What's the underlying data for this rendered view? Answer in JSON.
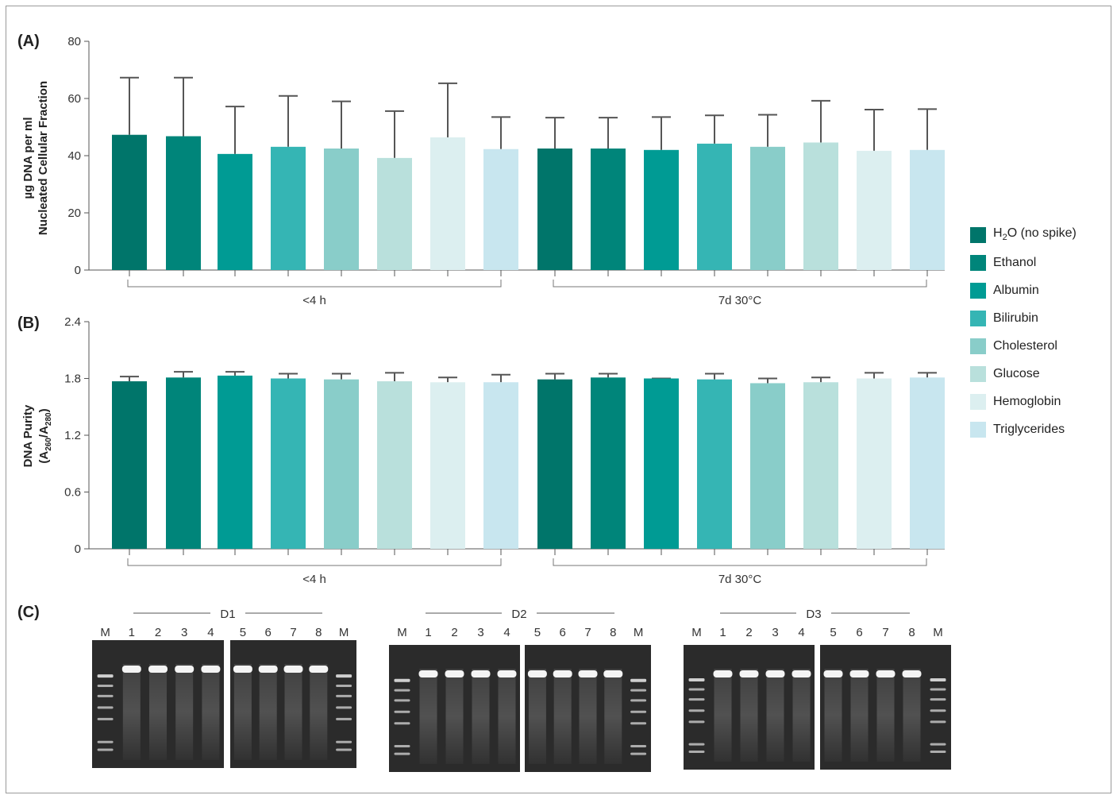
{
  "panels": {
    "a": "(A)",
    "b": "(B)",
    "c": "(C)"
  },
  "legend": [
    {
      "label": "H₂O (no spike)",
      "color": "#00756a"
    },
    {
      "label": "Ethanol",
      "color": "#00857a"
    },
    {
      "label": "Albumin",
      "color": "#009b94"
    },
    {
      "label": "Bilirubin",
      "color": "#35b5b4"
    },
    {
      "label": "Cholesterol",
      "color": "#89cdc9"
    },
    {
      "label": "Glucose",
      "color": "#b9e0dc"
    },
    {
      "label": "Hemoglobin",
      "color": "#dceff0"
    },
    {
      "label": "Triglycerides",
      "color": "#c8e6ef"
    }
  ],
  "chart_data": [
    {
      "type": "bar",
      "panel": "(A)",
      "ylabel_lines": [
        "µg DNA per ml",
        "Nucleated Cellular Fraction"
      ],
      "ylim": [
        0,
        80
      ],
      "yticks": [
        "0",
        "20",
        "40",
        "60",
        "80"
      ],
      "groups": [
        "<4 h",
        "7d 30°C"
      ],
      "categories": [
        "H₂O (no spike)",
        "Ethanol",
        "Albumin",
        "Bilirubin",
        "Cholesterol",
        "Glucose",
        "Hemoglobin",
        "Triglycerides"
      ],
      "series": [
        {
          "name": "<4 h",
          "values": [
            47.3,
            46.8,
            40.6,
            43.1,
            42.5,
            39.2,
            46.4,
            42.3
          ],
          "error_upper": [
            67.3,
            67.3,
            57.2,
            60.9,
            59.0,
            55.6,
            65.3,
            53.5
          ]
        },
        {
          "name": "7d 30°C",
          "values": [
            42.5,
            42.5,
            42.0,
            44.2,
            43.1,
            44.6,
            41.7,
            42.0
          ],
          "error_upper": [
            53.3,
            53.3,
            53.5,
            54.1,
            54.3,
            59.2,
            56.1,
            56.3
          ]
        }
      ]
    },
    {
      "type": "bar",
      "panel": "(B)",
      "ylabel_lines": [
        "DNA Purity"
      ],
      "ylabel_sub": {
        "open": "(A",
        "sub1": "260",
        "mid": "/A",
        "sub2": "280",
        "close": ")"
      },
      "ylim": [
        0,
        2.4
      ],
      "yticks": [
        "0",
        "0.6",
        "1.2",
        "1.8",
        "2.4"
      ],
      "groups": [
        "<4 h",
        "7d 30°C"
      ],
      "categories": [
        "H₂O (no spike)",
        "Ethanol",
        "Albumin",
        "Bilirubin",
        "Cholesterol",
        "Glucose",
        "Hemoglobin",
        "Triglycerides"
      ],
      "series": [
        {
          "name": "<4 h",
          "values": [
            1.77,
            1.81,
            1.83,
            1.8,
            1.79,
            1.77,
            1.76,
            1.76
          ],
          "error_upper": [
            1.82,
            1.87,
            1.87,
            1.85,
            1.85,
            1.86,
            1.81,
            1.84
          ]
        },
        {
          "name": "7d 30°C",
          "values": [
            1.79,
            1.81,
            1.8,
            1.79,
            1.75,
            1.76,
            1.8,
            1.81
          ],
          "error_upper": [
            1.85,
            1.85,
            1.8,
            1.85,
            1.8,
            1.81,
            1.86,
            1.86
          ]
        }
      ]
    }
  ],
  "gels": [
    {
      "donor": "D1",
      "left": [
        "M",
        "1",
        "2",
        "3",
        "4"
      ],
      "right": [
        "5",
        "6",
        "7",
        "8",
        "M"
      ]
    },
    {
      "donor": "D2",
      "left": [
        "M",
        "1",
        "2",
        "3",
        "4"
      ],
      "right": [
        "5",
        "6",
        "7",
        "8",
        "M"
      ]
    },
    {
      "donor": "D3",
      "left": [
        "M",
        "1",
        "2",
        "3",
        "4"
      ],
      "right": [
        "5",
        "6",
        "7",
        "8",
        "M"
      ]
    }
  ]
}
